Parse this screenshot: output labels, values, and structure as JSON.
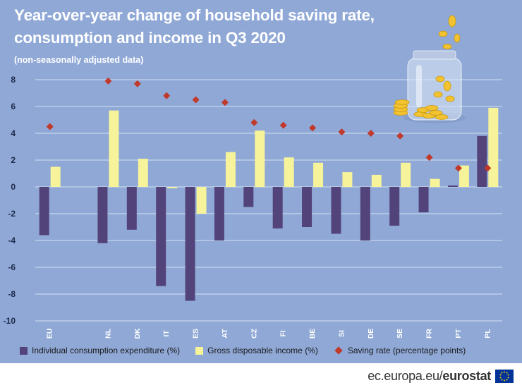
{
  "title_line1": "Year-over-year change of household saving rate,",
  "title_line2": "consumption and income in Q3 2020",
  "subtitle": "(non-seasonally adjusted data)",
  "colors": {
    "background": "#8fa8d6",
    "consumption": "#53437b",
    "income": "#f7f39a",
    "saving": "#c0392b",
    "grid": "#d6e0f3"
  },
  "legend": {
    "consumption": "Individual consumption expenditure (%)",
    "income": "Gross disposable income (%)",
    "saving": "Saving rate (percentage points)"
  },
  "footer": {
    "url": "ec.europa.eu/",
    "brand": "eurostat"
  },
  "icons": {
    "jar": "coin-jar-icon",
    "flag": "eu-flag-icon"
  },
  "chart_data": {
    "type": "bar",
    "title": "Year-over-year change of household saving rate, consumption and income in Q3 2020",
    "subtitle": "(non-seasonally adjusted data)",
    "xlabel": "",
    "ylabel": "",
    "ylim": [
      -10,
      8
    ],
    "yticks": [
      8,
      6,
      4,
      2,
      0,
      -2,
      -4,
      -6,
      -8,
      -10
    ],
    "grid": true,
    "legend_position": "bottom",
    "categories": [
      "EU",
      "NL",
      "DK",
      "IT",
      "ES",
      "AT",
      "CZ",
      "FI",
      "BE",
      "SI",
      "DE",
      "SE",
      "FR",
      "PT",
      "PL"
    ],
    "gap_after_first": true,
    "series": [
      {
        "name": "Individual consumption expenditure (%)",
        "kind": "bar",
        "values": [
          -3.6,
          -4.2,
          -3.2,
          -7.4,
          -8.5,
          -4.0,
          -1.5,
          -3.1,
          -3.0,
          -3.5,
          -4.0,
          -2.9,
          -1.9,
          0.1,
          3.8
        ]
      },
      {
        "name": "Gross disposable income (%)",
        "kind": "bar",
        "values": [
          1.5,
          5.7,
          2.1,
          -0.1,
          -2.0,
          2.6,
          4.2,
          2.2,
          1.8,
          1.1,
          0.9,
          1.8,
          0.6,
          1.6,
          5.9
        ]
      },
      {
        "name": "Saving rate (percentage points)",
        "kind": "marker",
        "values": [
          4.5,
          7.9,
          7.7,
          6.8,
          6.5,
          6.3,
          4.8,
          4.6,
          4.4,
          4.1,
          4.0,
          3.8,
          2.2,
          1.4,
          1.4
        ]
      }
    ]
  }
}
